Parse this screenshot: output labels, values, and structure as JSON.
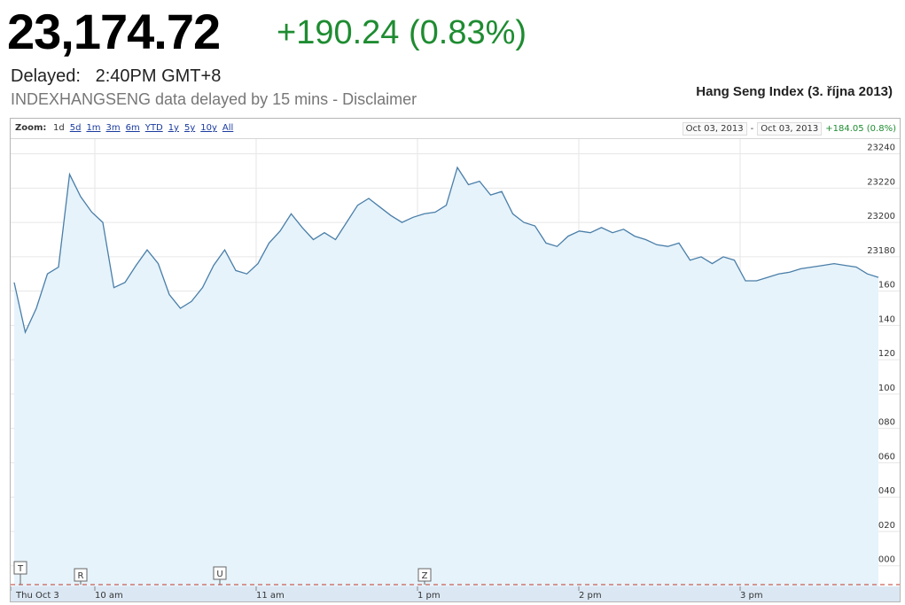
{
  "header": {
    "price": "23,174.72",
    "change": "+190.24 (0.83%)",
    "delayed": "Delayed:   2:40PM GMT+8",
    "note": "INDEXHANGSENG data delayed by 15 mins - Disclaimer",
    "chart_title": "Hang Seng Index (3. října 2013)"
  },
  "toolbar": {
    "zoom_label": "Zoom:",
    "zoom_options": [
      "1d",
      "5d",
      "1m",
      "3m",
      "6m",
      "YTD",
      "1y",
      "5y",
      "10y",
      "All"
    ],
    "start_date": "Oct 03, 2013",
    "separator": "-",
    "end_date": "Oct 03, 2013",
    "range_change": "+184.05 (0.8%)"
  },
  "colors": {
    "up": "#1e8c31",
    "line": "#4a7ea8",
    "fill": "#e6f3fb",
    "grid": "#e6e6e6"
  },
  "chart_data": {
    "type": "area",
    "title": "Hang Seng Index (3. října 2013)",
    "xlabel": "",
    "ylabel": "",
    "x_ticks": [
      "Thu Oct 3",
      "10 am",
      "11 am",
      "1 pm",
      "2 pm",
      "3 pm"
    ],
    "y_ticks": [
      23000,
      23020,
      23040,
      23060,
      23080,
      23100,
      23120,
      23140,
      23160,
      23180,
      23200,
      23220,
      23240
    ],
    "ylim": [
      22988,
      23247
    ],
    "x_range_minutes": [
      0,
      320
    ],
    "grid": true,
    "series": [
      {
        "x": [
          0,
          4,
          8,
          12,
          16,
          20,
          24,
          28,
          32,
          36,
          40,
          44,
          48,
          52,
          56,
          60,
          64,
          68,
          72,
          76,
          80,
          84,
          88,
          92,
          96,
          100,
          104,
          108,
          112,
          116,
          120,
          124,
          128,
          132,
          136,
          140,
          144,
          148,
          152,
          156,
          160,
          164,
          168,
          172,
          176,
          180,
          184,
          188,
          192,
          196,
          200,
          204,
          208,
          212,
          216,
          220,
          224,
          228,
          232,
          236,
          240,
          244,
          248,
          252,
          256,
          260,
          264,
          268,
          272,
          276,
          280,
          284,
          288,
          292,
          296,
          300,
          304,
          308,
          312
        ],
        "values": [
          23165,
          23136,
          23150,
          23170,
          23174,
          23228,
          23215,
          23206,
          23200,
          23162,
          23165,
          23175,
          23184,
          23176,
          23158,
          23150,
          23154,
          23162,
          23175,
          23184,
          23172,
          23170,
          23176,
          23188,
          23195,
          23205,
          23197,
          23190,
          23194,
          23190,
          23200,
          23210,
          23214,
          23209,
          23204,
          23200,
          23203,
          23205,
          23206,
          23210,
          23232,
          23222,
          23224,
          23216,
          23218,
          23205,
          23200,
          23198,
          23188,
          23186,
          23192,
          23195,
          23194,
          23197,
          23194,
          23196,
          23192,
          23190,
          23187,
          23186,
          23188,
          23178,
          23180,
          23176,
          23180,
          23178,
          23166,
          23166,
          23168,
          23170,
          23171,
          23173,
          23174,
          23175,
          23176,
          23175,
          23174,
          23170,
          23168
        ]
      }
    ],
    "event_markers": [
      "T",
      "R",
      "U",
      "Z"
    ]
  }
}
